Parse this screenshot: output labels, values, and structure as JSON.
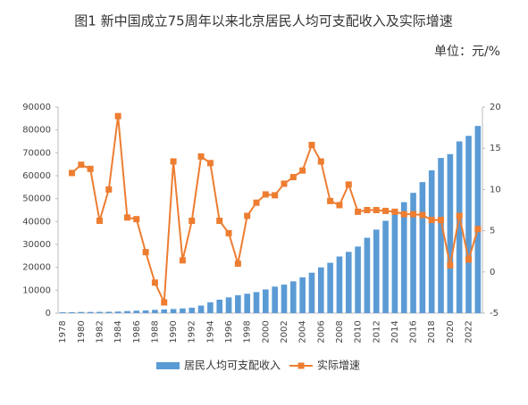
{
  "chart_data": {
    "type": "bar_line",
    "title": "图1  新中国成立75周年以来北京居民人均可支配收入及实际增速",
    "subtitle": "单位：元/%",
    "categories": [
      "1978",
      null,
      "1980",
      null,
      "1982",
      null,
      "1984",
      null,
      "1986",
      null,
      "1988",
      null,
      "1990",
      null,
      "1992",
      null,
      "1994",
      null,
      "1996",
      null,
      "1998",
      null,
      "2000",
      null,
      "2002",
      null,
      "2004",
      null,
      "2006",
      null,
      "2008",
      null,
      "2010",
      null,
      "2012",
      null,
      "2014",
      null,
      "2016",
      null,
      "2018",
      null,
      "2020",
      null,
      "2022",
      null
    ],
    "series": [
      {
        "name": "居民人均可支配收入",
        "type": "bar",
        "color": "#5b9bd5",
        "values": [
          365,
          415,
          501,
          514,
          561,
          590,
          693,
          908,
          1067,
          1182,
          1437,
          1597,
          1787,
          2040,
          2364,
          3296,
          4731,
          5868,
          6886,
          7813,
          8472,
          9183,
          10350,
          11578,
          12464,
          13883,
          15638,
          17653,
          19978,
          21989,
          24725,
          26738,
          29073,
          32903,
          36469,
          40321,
          44489,
          48458,
          52530,
          57230,
          62361,
          67756,
          69434,
          75002,
          77415,
          81752
        ]
      },
      {
        "name": "实际增速",
        "type": "line",
        "axis": "y2",
        "color": "#ed7d31",
        "values": [
          null,
          12,
          13,
          12.5,
          6.2,
          10,
          18.9,
          6.6,
          6.4,
          2.4,
          -1.3,
          -3.7,
          13.4,
          1.4,
          6.2,
          14,
          13.2,
          6.2,
          4.7,
          1,
          6.8,
          8.4,
          9.4,
          9.3,
          10.7,
          11.5,
          12.3,
          15.4,
          13.4,
          8.6,
          8.1,
          10.6,
          7.3,
          7.5,
          7.5,
          7.4,
          7.3,
          7,
          7,
          6.9,
          6.3,
          6.3,
          0.8,
          6.8,
          1.5,
          5.2
        ]
      }
    ],
    "ylim": [
      0,
      90000
    ],
    "yticks": [
      0,
      10000,
      20000,
      30000,
      40000,
      50000,
      60000,
      70000,
      80000,
      90000
    ],
    "y2lim": [
      -5,
      20
    ],
    "y2ticks": [
      -5,
      0,
      5,
      10,
      15,
      20
    ],
    "grid": false,
    "legend": "bottom"
  }
}
